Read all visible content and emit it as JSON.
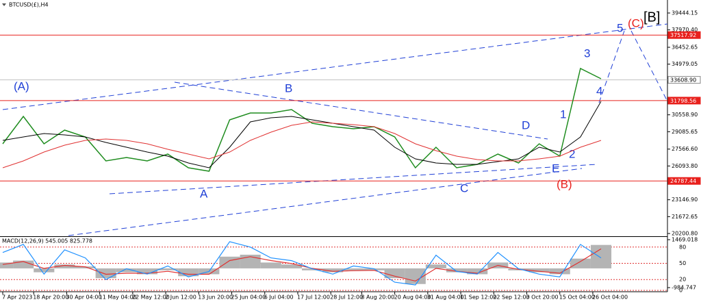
{
  "chart_data": [
    {
      "type": "line",
      "title": "BTCUSD(£),H4",
      "xlim": [
        0,
        29
      ],
      "xticks": [
        {
          "value": 0,
          "label": "7 Apr 2023"
        },
        {
          "value": 1.5,
          "label": "18 Apr 20:00"
        },
        {
          "value": 3.1,
          "label": "30 Apr 04:00"
        },
        {
          "value": 4.7,
          "label": "11 May 04:00"
        },
        {
          "value": 6.3,
          "label": "22 May 12:00"
        },
        {
          "value": 7.9,
          "label": "2 Jun 12:00"
        },
        {
          "value": 9.5,
          "label": "13 Jun 20:00"
        },
        {
          "value": 11.1,
          "label": "25 Jun 04:00"
        },
        {
          "value": 12.7,
          "label": "6 Jul 04:00"
        },
        {
          "value": 14.3,
          "label": "17 Jul 12:00"
        },
        {
          "value": 15.9,
          "label": "28 Jul 12:00"
        },
        {
          "value": 17.4,
          "label": "8 Aug 20:00"
        },
        {
          "value": 19,
          "label": "20 Aug 04:00"
        },
        {
          "value": 20.6,
          "label": "31 Aug 04:00"
        },
        {
          "value": 22.2,
          "label": "11 Sep 12:00"
        },
        {
          "value": 23.8,
          "label": "22 Sep 12:00"
        },
        {
          "value": 25.4,
          "label": "3 Oct 20:00"
        },
        {
          "value": 27,
          "label": "15 Oct 04:00"
        },
        {
          "value": 28.6,
          "label": "26 Oct 04:00"
        }
      ],
      "ylim": [
        19960,
        40280
      ],
      "yticks": [
        39444.15,
        {
          "value": 37970.4,
          "label": "37970.40"
        },
        36452.65,
        34979.05,
        {
          "value": 30558.9,
          "label": "30558.90"
        },
        29085.65,
        {
          "value": 27566.6,
          "label": "27566.60"
        },
        {
          "value": 26093.8,
          "label": "26093.80"
        },
        {
          "value": 23146.9,
          "label": "23146.90"
        },
        21672.65,
        {
          "value": 20200.8,
          "label": "20200.80"
        }
      ],
      "hlines": [
        {
          "value": 37517.92,
          "color": "#e8201c"
        },
        {
          "value": {
            "value": 33608.9,
            "label": "33608.90"
          },
          "color": "#c0c0c0"
        },
        {
          "value": 31798.56,
          "color": "#e8201c"
        },
        {
          "value": 24787.44,
          "color": "#e8201c"
        }
      ],
      "series": [
        {
          "color": "#1e8c1e",
          "values": [
            28028,
            30419,
            28028,
            29223,
            28626,
            26534,
            26833,
            26534,
            27131,
            25936,
            25637,
            30120,
            30718,
            30718,
            31016,
            29821,
            29522,
            29343,
            29522,
            28626,
            25936,
            27729,
            25936,
            26235,
            27131,
            26354,
            28028,
            26952,
            34603,
            33706
          ]
        },
        {
          "color": "#000000",
          "values": [
            28327,
            28626,
            28925,
            28805,
            28626,
            28148,
            27730,
            27311,
            26952,
            26354,
            25936,
            27730,
            29941,
            30300,
            30419,
            30120,
            29821,
            29522,
            29224,
            27730,
            26714,
            26354,
            26235,
            26235,
            26474,
            26714,
            27730,
            27311,
            28626,
            31734
          ]
        },
        {
          "color": "#e03030",
          "values": [
            25936,
            26534,
            27311,
            27909,
            28327,
            28447,
            28327,
            28028,
            27550,
            27132,
            26714,
            27311,
            28327,
            29044,
            29642,
            29941,
            29821,
            29702,
            29522,
            28925,
            28028,
            27430,
            26952,
            26654,
            26534,
            26534,
            26714,
            26952,
            27730,
            28327
          ]
        }
      ],
      "annotations": [
        {
          "text": "(A)",
          "color": "#1f3fd6"
        },
        {
          "text": "B",
          "color": "#1f3fd6"
        },
        {
          "text": "A",
          "color": "#1f3fd6"
        },
        {
          "text": "C",
          "color": "#1f3fd6"
        },
        {
          "text": "D",
          "color": "#1f3fd6"
        },
        {
          "text": "E",
          "color": "#1f3fd6"
        },
        {
          "text": "(B)",
          "color": "#e8201c"
        },
        {
          "text": "1",
          "color": "#1f3fd6"
        },
        {
          "text": "2",
          "color": "#1f3fd6"
        },
        {
          "text": "3",
          "color": "#1f3fd6"
        },
        {
          "text": "4",
          "color": "#1f3fd6"
        },
        {
          "text": "5",
          "color": "#1f3fd6"
        },
        {
          "text": "(C)",
          "color": "#e8201c"
        },
        {
          "text": "[B]",
          "color": "#000000"
        }
      ]
    },
    {
      "type": "macd",
      "title": "MACD(12,26,9) 545.005 825.778",
      "xlim": [
        0,
        29
      ],
      "ylim": [
        -1125,
        1644
      ],
      "yticks": [
        1469.018,
        -984.747
      ],
      "y2lim": [
        0,
        100
      ],
      "y2ticks": [
        80,
        50,
        20,
        0
      ],
      "series": [
        {
          "color": "#b4b4b4",
          "values": [
            300,
            400,
            -200,
            200,
            100,
            -500,
            -200,
            -300,
            -100,
            -400,
            -300,
            600,
            700,
            300,
            200,
            -100,
            -200,
            -100,
            -100,
            -500,
            -800,
            200,
            -200,
            -300,
            300,
            -100,
            -200,
            -300,
            500,
            1200
          ]
        },
        {
          "color": "#e03030",
          "values": [
            200,
            350,
            0,
            150,
            80,
            -300,
            -250,
            -250,
            -150,
            -300,
            -300,
            400,
            600,
            400,
            250,
            0,
            -150,
            -120,
            -100,
            -400,
            -650,
            0,
            -150,
            -250,
            150,
            -50,
            -150,
            -250,
            350,
            1000
          ]
        },
        {
          "color": "#1e90ff",
          "axis": "y2",
          "values": [
            70,
            85,
            30,
            75,
            60,
            20,
            40,
            30,
            45,
            25,
            35,
            90,
            80,
            60,
            55,
            40,
            30,
            45,
            40,
            15,
            10,
            65,
            35,
            30,
            70,
            40,
            30,
            25,
            85,
            60
          ]
        }
      ]
    }
  ]
}
